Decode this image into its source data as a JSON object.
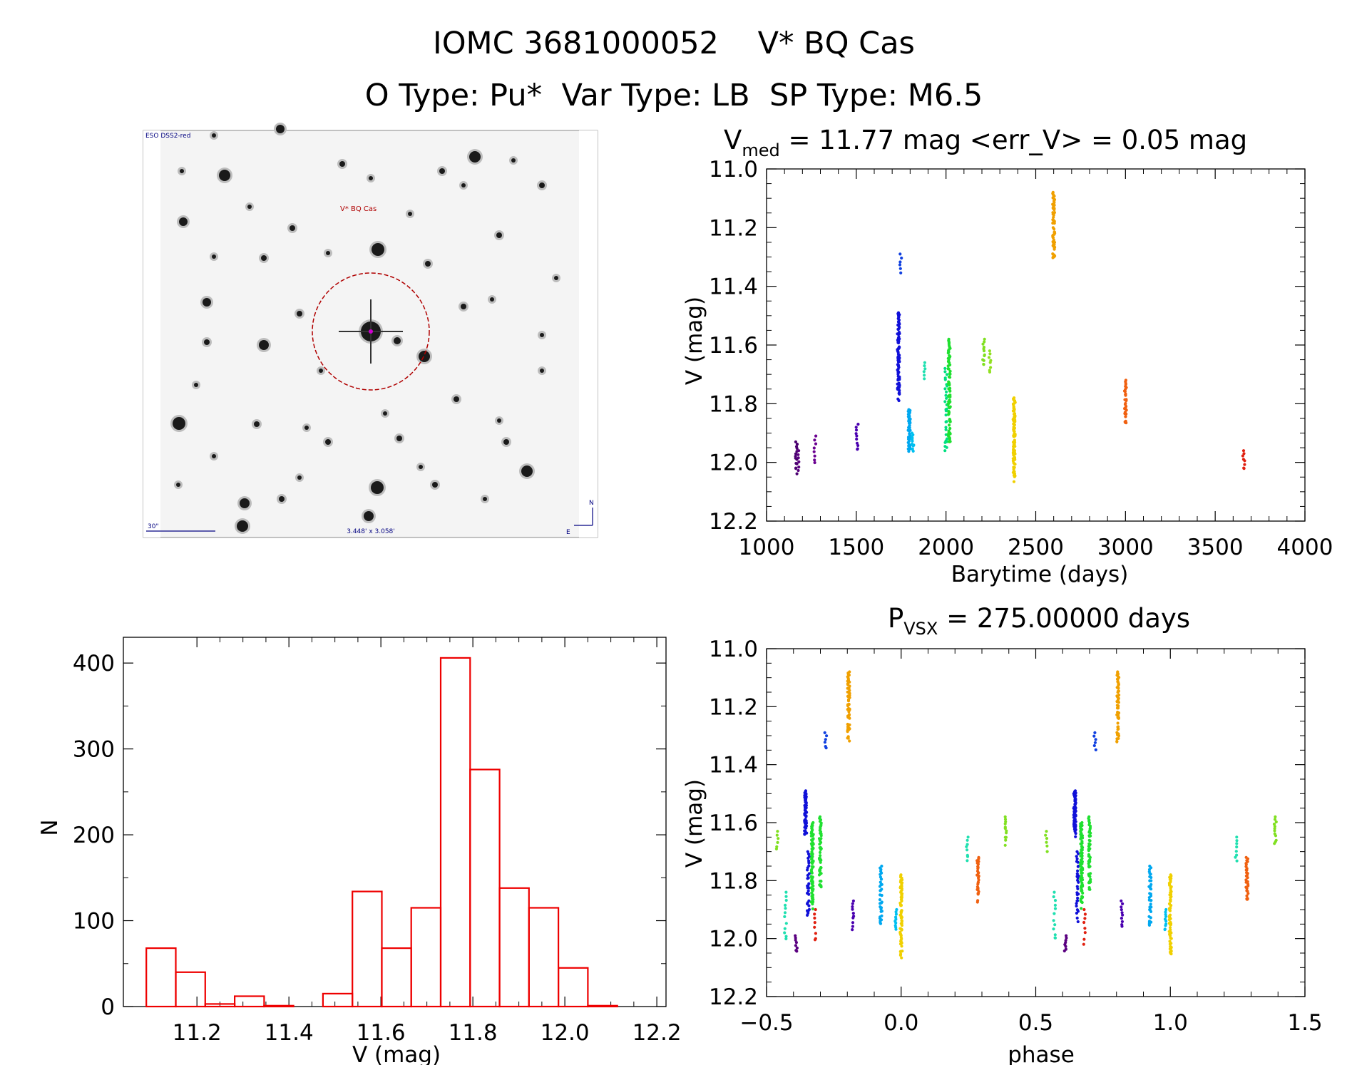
{
  "header": {
    "title": "IOMC 3681000052    V* BQ Cas",
    "subtitle": "O Type: Pu*  Var Type: LB  SP Type: M6.5"
  },
  "finder": {
    "survey": "ESO DSS2-red",
    "target_label": "V* BQ Cas",
    "scale_label": "30\"",
    "fov_label": "3.448' x 3.058'",
    "north": "N",
    "east": "E"
  },
  "chart_data": [
    {
      "id": "light-curve",
      "type": "scatter",
      "title_main": "V",
      "title_sub": "med",
      "title_rest": " = 11.77 mag <err_V> = 0.05 mag",
      "xlabel": "Barytime (days)",
      "ylabel": "V (mag)",
      "xlim": [
        1000,
        4000
      ],
      "ylim": [
        12.2,
        11.0
      ],
      "y_inverted": true,
      "xticks": [
        "1000",
        "1500",
        "2000",
        "2500",
        "3000",
        "3500",
        "4000"
      ],
      "yticks": [
        "11.0",
        "11.2",
        "11.4",
        "11.6",
        "11.8",
        "12.0",
        "12.2"
      ],
      "groups": [
        {
          "x": 1165,
          "ymin": 11.93,
          "ymax": 12.04,
          "color": "#4b0070",
          "n": 14
        },
        {
          "x": 1180,
          "ymin": 11.96,
          "ymax": 12.03,
          "color": "#5a0080",
          "n": 6
        },
        {
          "x": 1270,
          "ymin": 11.91,
          "ymax": 12.01,
          "color": "#6a0090",
          "n": 8
        },
        {
          "x": 1505,
          "ymin": 11.87,
          "ymax": 11.97,
          "color": "#4a00b0",
          "n": 10
        },
        {
          "x": 1735,
          "ymin": 11.49,
          "ymax": 11.8,
          "color": "#1010d8",
          "n": 90
        },
        {
          "x": 1748,
          "ymin": 11.29,
          "ymax": 11.36,
          "color": "#1040e0",
          "n": 6
        },
        {
          "x": 1795,
          "ymin": 11.82,
          "ymax": 11.97,
          "color": "#00a8f0",
          "n": 45
        },
        {
          "x": 1815,
          "ymin": 11.9,
          "ymax": 11.97,
          "color": "#00c0f0",
          "n": 12
        },
        {
          "x": 1880,
          "ymin": 11.66,
          "ymax": 11.72,
          "color": "#20e0b0",
          "n": 6
        },
        {
          "x": 2000,
          "ymin": 11.68,
          "ymax": 12.0,
          "color": "#00e080",
          "n": 30
        },
        {
          "x": 2018,
          "ymin": 11.58,
          "ymax": 11.95,
          "color": "#20e030",
          "n": 80
        },
        {
          "x": 2210,
          "ymin": 11.58,
          "ymax": 11.68,
          "color": "#80e020",
          "n": 12
        },
        {
          "x": 2245,
          "ymin": 11.62,
          "ymax": 11.7,
          "color": "#90e020",
          "n": 8
        },
        {
          "x": 2380,
          "ymin": 11.78,
          "ymax": 12.08,
          "color": "#f0d000",
          "n": 90
        },
        {
          "x": 2600,
          "ymin": 11.08,
          "ymax": 11.33,
          "color": "#f0a000",
          "n": 60
        },
        {
          "x": 3000,
          "ymin": 11.72,
          "ymax": 11.88,
          "color": "#f06010",
          "n": 30
        },
        {
          "x": 3660,
          "ymin": 11.96,
          "ymax": 12.03,
          "color": "#e02010",
          "n": 8
        }
      ]
    },
    {
      "id": "histogram",
      "type": "bar",
      "xlabel": "V (mag)",
      "ylabel": "N",
      "xlim": [
        11.04,
        12.22
      ],
      "ylim": [
        0,
        430
      ],
      "xticks": [
        "11.2",
        "11.4",
        "11.6",
        "11.8",
        "12.0",
        "12.2"
      ],
      "yticks": [
        "0",
        "100",
        "200",
        "300",
        "400"
      ],
      "bin_edges": [
        11.09,
        11.154,
        11.218,
        11.282,
        11.346,
        11.41,
        11.474,
        11.538,
        11.602,
        11.666,
        11.73,
        11.794,
        11.858,
        11.922,
        11.986,
        12.05,
        12.114
      ],
      "counts": [
        68,
        40,
        3,
        12,
        1,
        0,
        15,
        134,
        68,
        115,
        406,
        276,
        138,
        115,
        45,
        1
      ],
      "color": "#ee0000"
    },
    {
      "id": "phased-curve",
      "type": "scatter",
      "title_main": "P",
      "title_sub": "VSX",
      "title_rest": " = 275.00000 days",
      "xlabel": "phase",
      "ylabel": "V (mag)",
      "xlim": [
        -0.5,
        1.5
      ],
      "ylim": [
        12.2,
        11.0
      ],
      "y_inverted": true,
      "xticks": [
        "−0.5",
        "0.0",
        "0.5",
        "1.0",
        "1.5"
      ],
      "yticks": [
        "11.0",
        "11.2",
        "11.4",
        "11.6",
        "11.8",
        "12.0",
        "12.2"
      ],
      "groups": [
        {
          "x": -0.46,
          "ymin": 11.63,
          "ymax": 11.7,
          "color": "#80e020",
          "n": 6
        },
        {
          "x": -0.43,
          "ymin": 11.84,
          "ymax": 12.02,
          "color": "#20e0b0",
          "n": 12
        },
        {
          "x": -0.39,
          "ymin": 11.99,
          "ymax": 12.05,
          "color": "#5a0080",
          "n": 8
        },
        {
          "x": -0.355,
          "ymin": 11.49,
          "ymax": 11.65,
          "color": "#1010d8",
          "n": 60
        },
        {
          "x": -0.345,
          "ymin": 11.7,
          "ymax": 11.95,
          "color": "#1010d8",
          "n": 30
        },
        {
          "x": -0.33,
          "ymin": 11.6,
          "ymax": 11.9,
          "color": "#20e030",
          "n": 80
        },
        {
          "x": -0.32,
          "ymin": 11.9,
          "ymax": 12.02,
          "color": "#e02010",
          "n": 8
        },
        {
          "x": -0.3,
          "ymin": 11.58,
          "ymax": 11.85,
          "color": "#20e030",
          "n": 50
        },
        {
          "x": -0.28,
          "ymin": 11.29,
          "ymax": 11.35,
          "color": "#1040e0",
          "n": 6
        },
        {
          "x": -0.195,
          "ymin": 11.08,
          "ymax": 11.33,
          "color": "#f0a000",
          "n": 60
        },
        {
          "x": -0.18,
          "ymin": 11.87,
          "ymax": 11.97,
          "color": "#4a00b0",
          "n": 10
        },
        {
          "x": -0.075,
          "ymin": 11.75,
          "ymax": 11.97,
          "color": "#00a8f0",
          "n": 35
        },
        {
          "x": -0.02,
          "ymin": 11.9,
          "ymax": 11.98,
          "color": "#00c0f0",
          "n": 10
        },
        {
          "x": 0.0,
          "ymin": 11.78,
          "ymax": 12.08,
          "color": "#f0d000",
          "n": 70
        },
        {
          "x": 0.245,
          "ymin": 11.65,
          "ymax": 11.74,
          "color": "#20e0b0",
          "n": 8
        },
        {
          "x": 0.285,
          "ymin": 11.72,
          "ymax": 11.88,
          "color": "#f06010",
          "n": 30
        },
        {
          "x": 0.39,
          "ymin": 11.58,
          "ymax": 11.68,
          "color": "#80e020",
          "n": 12
        },
        {
          "x": 0.54,
          "ymin": 11.63,
          "ymax": 11.7,
          "color": "#80e020",
          "n": 6
        },
        {
          "x": 0.57,
          "ymin": 11.84,
          "ymax": 12.02,
          "color": "#20e0b0",
          "n": 12
        },
        {
          "x": 0.61,
          "ymin": 11.99,
          "ymax": 12.05,
          "color": "#5a0080",
          "n": 8
        },
        {
          "x": 0.645,
          "ymin": 11.49,
          "ymax": 11.65,
          "color": "#1010d8",
          "n": 60
        },
        {
          "x": 0.655,
          "ymin": 11.7,
          "ymax": 11.95,
          "color": "#1010d8",
          "n": 30
        },
        {
          "x": 0.67,
          "ymin": 11.6,
          "ymax": 11.9,
          "color": "#20e030",
          "n": 80
        },
        {
          "x": 0.68,
          "ymin": 11.9,
          "ymax": 12.02,
          "color": "#e02010",
          "n": 8
        },
        {
          "x": 0.7,
          "ymin": 11.58,
          "ymax": 11.85,
          "color": "#20e030",
          "n": 50
        },
        {
          "x": 0.72,
          "ymin": 11.29,
          "ymax": 11.35,
          "color": "#1040e0",
          "n": 6
        },
        {
          "x": 0.805,
          "ymin": 11.08,
          "ymax": 11.33,
          "color": "#f0a000",
          "n": 60
        },
        {
          "x": 0.82,
          "ymin": 11.87,
          "ymax": 11.97,
          "color": "#4a00b0",
          "n": 10
        },
        {
          "x": 0.925,
          "ymin": 11.75,
          "ymax": 11.97,
          "color": "#00a8f0",
          "n": 35
        },
        {
          "x": 0.98,
          "ymin": 11.9,
          "ymax": 11.98,
          "color": "#00c0f0",
          "n": 10
        },
        {
          "x": 1.0,
          "ymin": 11.78,
          "ymax": 12.08,
          "color": "#f0d000",
          "n": 70
        },
        {
          "x": 1.245,
          "ymin": 11.65,
          "ymax": 11.74,
          "color": "#20e0b0",
          "n": 8
        },
        {
          "x": 1.285,
          "ymin": 11.72,
          "ymax": 11.88,
          "color": "#f06010",
          "n": 30
        },
        {
          "x": 1.39,
          "ymin": 11.58,
          "ymax": 11.68,
          "color": "#80e020",
          "n": 12
        }
      ]
    }
  ]
}
